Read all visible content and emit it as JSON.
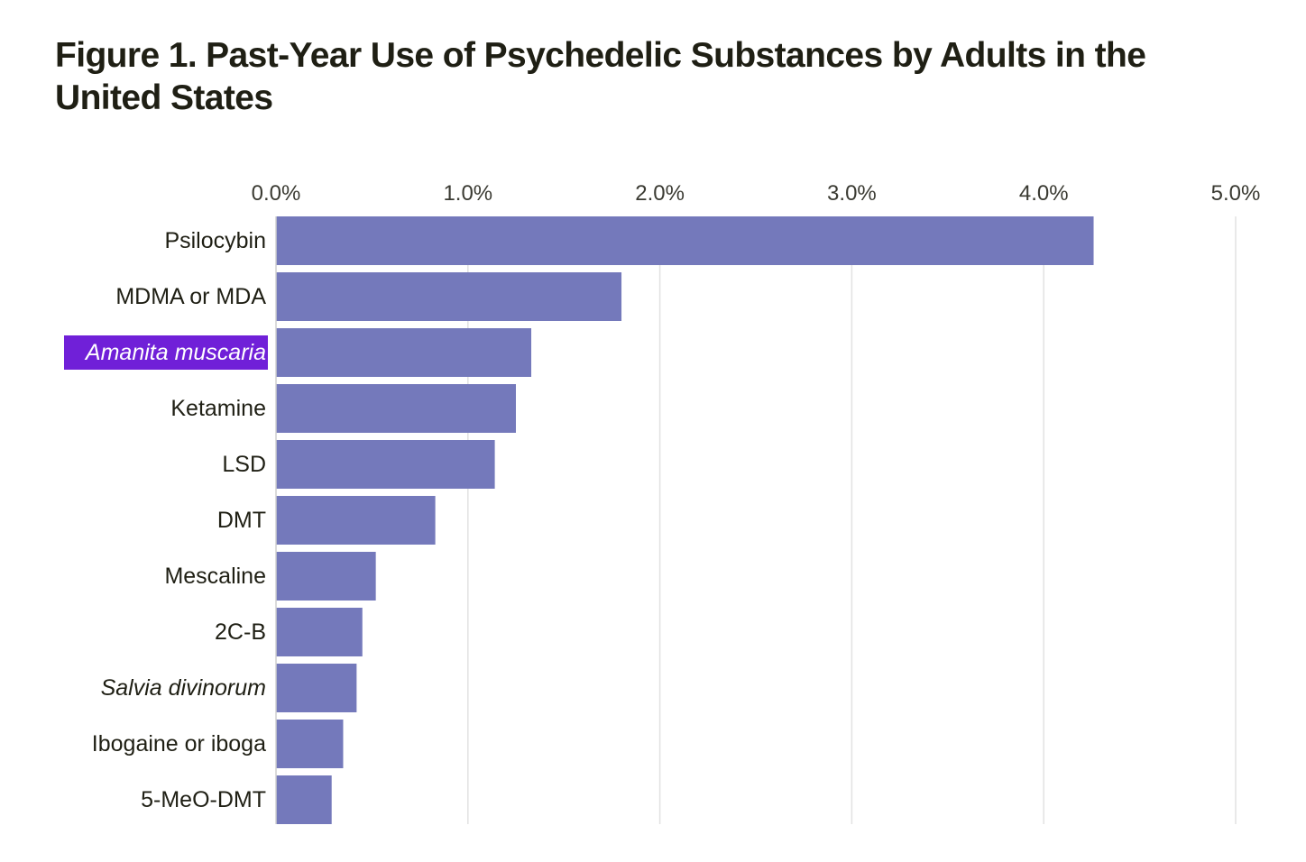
{
  "figure": {
    "label": "Figure 1.",
    "title": "Past-Year Use of Psychedelic Substances by Adults in the United States"
  },
  "chart_data": {
    "type": "bar",
    "orientation": "horizontal",
    "title": "Figure 1. Past-Year Use of Psychedelic Substances by Adults in the United States",
    "xlabel": "",
    "ylabel": "",
    "xlim": [
      0,
      5
    ],
    "x_tick_values": [
      0,
      1,
      2,
      3,
      4,
      5
    ],
    "x_tick_labels": [
      "0.0%",
      "1.0%",
      "2.0%",
      "3.0%",
      "4.0%",
      "5.0%"
    ],
    "x_axis_position": "top",
    "grid": "vertical",
    "legend": "none",
    "bar_color": "#7479bb",
    "highlight_color": "#7020d8",
    "categories": [
      "Psilocybin",
      "MDMA or MDA",
      "Amanita muscaria",
      "Ketamine",
      "LSD",
      "DMT",
      "Mescaline",
      "2C-B",
      "Salvia divinorum",
      "Ibogaine or iboga",
      "5-MeO-DMT"
    ],
    "italic_categories": [
      "Amanita muscaria",
      "Salvia divinorum"
    ],
    "highlighted_category": "Amanita muscaria",
    "values": [
      4.26,
      1.8,
      1.33,
      1.25,
      1.14,
      0.83,
      0.52,
      0.45,
      0.42,
      0.35,
      0.29
    ]
  }
}
